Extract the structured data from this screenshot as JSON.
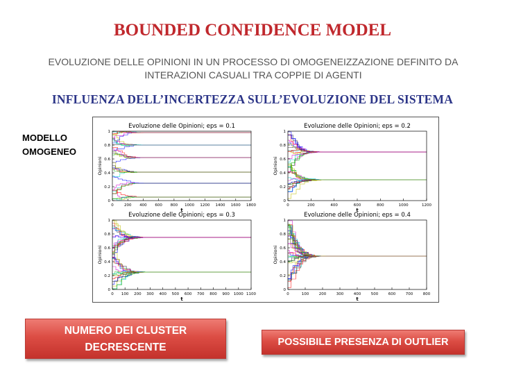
{
  "slide": {
    "title": "BOUNDED CONFIDENCE MODEL",
    "subtitle_line1": "EVOLUZIONE DELLE OPINIONI IN UN PROCESSO DI OMOGENEIZZAZIONE DEFINITO DA",
    "subtitle_line2": "INTERAZIONI CASUALI TRA COPPIE DI AGENTI",
    "section_title": "INFLUENZA DELL’INCERTEZZA SULL’EVOLUZIONE DEL SISTEMA",
    "model_label_line1": "MODELLO",
    "model_label_line2": "OMOGENEO",
    "button_left_line1": "NUMERO DEI CLUSTER",
    "button_left_line2": "DECRESCENTE",
    "button_right": "POSSIBILE PRESENZA DI OUTLIER"
  },
  "colors": {
    "title": "#c0282d",
    "section": "#2b3487",
    "button": "#dc4d44",
    "series_palette": [
      "#0000ff",
      "#00aa00",
      "#ff0000",
      "#00cccc",
      "#cc00cc",
      "#bbbb00",
      "#333333"
    ]
  },
  "chart_data": [
    {
      "type": "line",
      "title": "Evoluzione delle Opinioni; eps = 0.1",
      "xlabel": "t",
      "ylabel": "Opinioni",
      "xlim": [
        0,
        1800
      ],
      "ylim": [
        0,
        1
      ],
      "xticks": [
        0,
        200,
        400,
        600,
        800,
        1000,
        1200,
        1400,
        1600,
        1800
      ],
      "yticks": [
        0,
        0.2,
        0.4,
        0.6,
        0.8,
        1
      ],
      "clusters": [
        0.98,
        0.8,
        0.62,
        0.41,
        0.25,
        0.05
      ]
    },
    {
      "type": "line",
      "title": "Evoluzione delle Opinioni; eps = 0.2",
      "xlabel": "t",
      "ylabel": "Opinioni",
      "xlim": [
        0,
        1200
      ],
      "ylim": [
        0,
        1
      ],
      "xticks": [
        0,
        200,
        400,
        600,
        800,
        1000,
        1200
      ],
      "yticks": [
        0,
        0.2,
        0.4,
        0.6,
        0.8,
        1
      ],
      "clusters": [
        0.7,
        0.3
      ]
    },
    {
      "type": "line",
      "title": "Evoluzione delle Opinioni; eps = 0.3",
      "xlabel": "t",
      "ylabel": "Opinioni",
      "xlim": [
        0,
        1100
      ],
      "ylim": [
        0,
        1
      ],
      "xticks": [
        0,
        100,
        200,
        300,
        400,
        500,
        600,
        700,
        800,
        900,
        1000,
        1100
      ],
      "yticks": [
        0,
        0.2,
        0.4,
        0.6,
        0.8,
        1
      ],
      "clusters": [
        0.75,
        0.25
      ]
    },
    {
      "type": "line",
      "title": "Evoluzione delle Opinioni; eps = 0.4",
      "xlabel": "t",
      "ylabel": "Opinioni",
      "xlim": [
        0,
        800
      ],
      "ylim": [
        0,
        1
      ],
      "xticks": [
        0,
        100,
        200,
        300,
        400,
        500,
        600,
        700,
        800
      ],
      "yticks": [
        0,
        0.2,
        0.4,
        0.6,
        0.8,
        1
      ],
      "clusters": [
        0.48
      ]
    }
  ]
}
